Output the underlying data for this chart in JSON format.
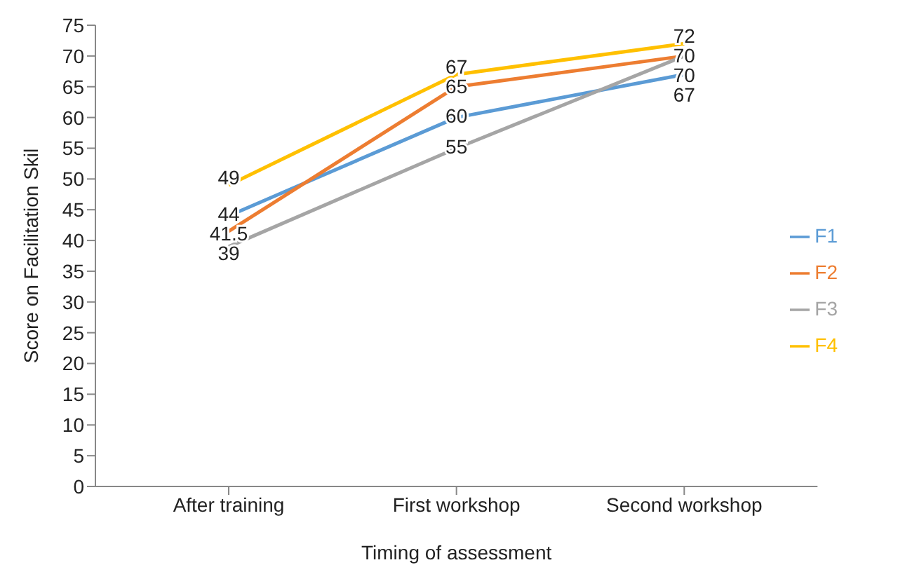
{
  "chart_data": {
    "type": "line",
    "xlabel": "Timing of assessment",
    "ylabel": "Score on Facilitation Skil",
    "categories": [
      "After training",
      "First workshop",
      "Second workshop"
    ],
    "series": [
      {
        "name": "F1",
        "color": "#5b9bd5",
        "values": [
          44,
          60,
          67
        ]
      },
      {
        "name": "F2",
        "color": "#ed7d31",
        "values": [
          41.5,
          65,
          70
        ]
      },
      {
        "name": "F3",
        "color": "#a5a5a5",
        "values": [
          39,
          55,
          70
        ]
      },
      {
        "name": "F4",
        "color": "#ffc000",
        "values": [
          49,
          67,
          72
        ]
      }
    ],
    "ylim": [
      0,
      75
    ],
    "yticks": [
      0,
      5,
      10,
      15,
      20,
      25,
      30,
      35,
      40,
      45,
      50,
      55,
      60,
      65,
      70,
      75
    ],
    "grid": false,
    "legend": "right",
    "marker": "none",
    "line_style": "solid",
    "data_labels": true
  }
}
